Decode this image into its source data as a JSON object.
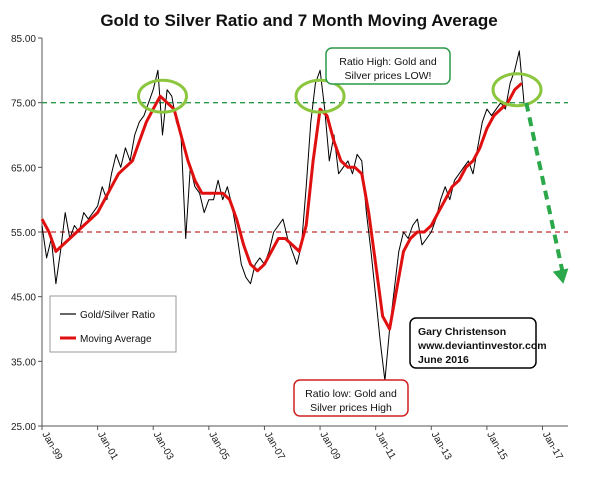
{
  "chart_data": {
    "type": "line",
    "title": "Gold to Silver Ratio and 7 Month Moving Average",
    "xlabel": "",
    "ylabel": "",
    "ylim": [
      25,
      85
    ],
    "y_ticks": [
      "85.00",
      "75.00",
      "65.00",
      "55.00",
      "45.00",
      "35.00",
      "25.00"
    ],
    "x_range": [
      "1999-01",
      "2017-12"
    ],
    "x_ticks": [
      {
        "label": "Jan-99",
        "date": "1999-01"
      },
      {
        "label": "Jan-01",
        "date": "2001-01"
      },
      {
        "label": "Jan-03",
        "date": "2003-01"
      },
      {
        "label": "Jan-05",
        "date": "2005-01"
      },
      {
        "label": "Jan-07",
        "date": "2007-01"
      },
      {
        "label": "Jan-09",
        "date": "2009-01"
      },
      {
        "label": "Jan-11",
        "date": "2011-01"
      },
      {
        "label": "Jan-13",
        "date": "2013-01"
      },
      {
        "label": "Jan-15",
        "date": "2015-01"
      },
      {
        "label": "Jan-17",
        "date": "2017-01"
      }
    ],
    "grid": false,
    "legend_position": "bottom-left",
    "series": [
      {
        "name": "Gold/Silver Ratio",
        "color": "#000000",
        "points": [
          [
            "1999-01",
            56
          ],
          [
            "1999-03",
            51
          ],
          [
            "1999-05",
            54
          ],
          [
            "1999-07",
            47
          ],
          [
            "1999-09",
            52
          ],
          [
            "1999-11",
            58
          ],
          [
            "2000-01",
            54
          ],
          [
            "2000-03",
            56
          ],
          [
            "2000-05",
            55
          ],
          [
            "2000-07",
            58
          ],
          [
            "2000-09",
            57
          ],
          [
            "2000-11",
            58
          ],
          [
            "2001-01",
            59
          ],
          [
            "2001-03",
            62
          ],
          [
            "2001-05",
            60
          ],
          [
            "2001-07",
            64
          ],
          [
            "2001-09",
            67
          ],
          [
            "2001-11",
            65
          ],
          [
            "2002-01",
            68
          ],
          [
            "2002-03",
            66
          ],
          [
            "2002-05",
            70
          ],
          [
            "2002-07",
            72
          ],
          [
            "2002-09",
            73
          ],
          [
            "2002-11",
            75
          ],
          [
            "2003-01",
            77
          ],
          [
            "2003-03",
            80
          ],
          [
            "2003-05",
            70
          ],
          [
            "2003-07",
            77
          ],
          [
            "2003-09",
            76
          ],
          [
            "2003-11",
            72
          ],
          [
            "2004-01",
            70
          ],
          [
            "2004-03",
            54
          ],
          [
            "2004-05",
            65
          ],
          [
            "2004-07",
            62
          ],
          [
            "2004-09",
            61
          ],
          [
            "2004-11",
            58
          ],
          [
            "2005-01",
            60
          ],
          [
            "2005-03",
            60
          ],
          [
            "2005-05",
            63
          ],
          [
            "2005-07",
            60
          ],
          [
            "2005-09",
            62
          ],
          [
            "2005-11",
            59
          ],
          [
            "2006-01",
            55
          ],
          [
            "2006-03",
            50
          ],
          [
            "2006-05",
            48
          ],
          [
            "2006-07",
            47
          ],
          [
            "2006-09",
            50
          ],
          [
            "2006-11",
            51
          ],
          [
            "2007-01",
            50
          ],
          [
            "2007-03",
            52
          ],
          [
            "2007-05",
            55
          ],
          [
            "2007-07",
            56
          ],
          [
            "2007-09",
            57
          ],
          [
            "2007-11",
            54
          ],
          [
            "2008-01",
            52
          ],
          [
            "2008-03",
            50
          ],
          [
            "2008-05",
            53
          ],
          [
            "2008-07",
            62
          ],
          [
            "2008-09",
            72
          ],
          [
            "2008-11",
            78
          ],
          [
            "2009-01",
            80
          ],
          [
            "2009-03",
            74
          ],
          [
            "2009-05",
            66
          ],
          [
            "2009-07",
            70
          ],
          [
            "2009-09",
            64
          ],
          [
            "2009-11",
            65
          ],
          [
            "2010-01",
            66
          ],
          [
            "2010-03",
            64
          ],
          [
            "2010-05",
            67
          ],
          [
            "2010-07",
            66
          ],
          [
            "2010-09",
            58
          ],
          [
            "2010-11",
            52
          ],
          [
            "2011-01",
            45
          ],
          [
            "2011-03",
            38
          ],
          [
            "2011-05",
            32
          ],
          [
            "2011-07",
            40
          ],
          [
            "2011-09",
            46
          ],
          [
            "2011-11",
            52
          ],
          [
            "2012-01",
            55
          ],
          [
            "2012-03",
            54
          ],
          [
            "2012-05",
            56
          ],
          [
            "2012-07",
            57
          ],
          [
            "2012-09",
            53
          ],
          [
            "2012-11",
            54
          ],
          [
            "2013-01",
            55
          ],
          [
            "2013-03",
            57
          ],
          [
            "2013-05",
            60
          ],
          [
            "2013-07",
            62
          ],
          [
            "2013-09",
            60
          ],
          [
            "2013-11",
            63
          ],
          [
            "2014-01",
            64
          ],
          [
            "2014-03",
            65
          ],
          [
            "2014-05",
            66
          ],
          [
            "2014-07",
            64
          ],
          [
            "2014-09",
            68
          ],
          [
            "2014-11",
            72
          ],
          [
            "2015-01",
            74
          ],
          [
            "2015-03",
            73
          ],
          [
            "2015-05",
            74
          ],
          [
            "2015-07",
            75
          ],
          [
            "2015-09",
            74
          ],
          [
            "2015-11",
            78
          ],
          [
            "2016-01",
            80
          ],
          [
            "2016-03",
            83
          ],
          [
            "2016-05",
            75
          ]
        ]
      },
      {
        "name": "Moving Average",
        "color": "#e01010",
        "points": [
          [
            "1999-01",
            57
          ],
          [
            "1999-04",
            55
          ],
          [
            "1999-07",
            52
          ],
          [
            "1999-10",
            53
          ],
          [
            "2000-01",
            54
          ],
          [
            "2000-04",
            55
          ],
          [
            "2000-07",
            56
          ],
          [
            "2000-10",
            57
          ],
          [
            "2001-01",
            58
          ],
          [
            "2001-04",
            60
          ],
          [
            "2001-07",
            62
          ],
          [
            "2001-10",
            64
          ],
          [
            "2002-01",
            65
          ],
          [
            "2002-04",
            66
          ],
          [
            "2002-07",
            69
          ],
          [
            "2002-10",
            72
          ],
          [
            "2003-01",
            74
          ],
          [
            "2003-04",
            76
          ],
          [
            "2003-07",
            75
          ],
          [
            "2003-10",
            74
          ],
          [
            "2004-01",
            70
          ],
          [
            "2004-04",
            66
          ],
          [
            "2004-07",
            63
          ],
          [
            "2004-10",
            61
          ],
          [
            "2005-01",
            61
          ],
          [
            "2005-04",
            61
          ],
          [
            "2005-07",
            61
          ],
          [
            "2005-10",
            60
          ],
          [
            "2006-01",
            57
          ],
          [
            "2006-04",
            53
          ],
          [
            "2006-07",
            50
          ],
          [
            "2006-10",
            49
          ],
          [
            "2007-01",
            50
          ],
          [
            "2007-04",
            52
          ],
          [
            "2007-07",
            54
          ],
          [
            "2007-10",
            54
          ],
          [
            "2008-01",
            53
          ],
          [
            "2008-04",
            52
          ],
          [
            "2008-07",
            56
          ],
          [
            "2008-10",
            66
          ],
          [
            "2009-01",
            74
          ],
          [
            "2009-04",
            73
          ],
          [
            "2009-07",
            69
          ],
          [
            "2009-10",
            66
          ],
          [
            "2010-01",
            65
          ],
          [
            "2010-04",
            65
          ],
          [
            "2010-07",
            64
          ],
          [
            "2010-10",
            58
          ],
          [
            "2011-01",
            50
          ],
          [
            "2011-04",
            42
          ],
          [
            "2011-07",
            40
          ],
          [
            "2011-10",
            46
          ],
          [
            "2012-01",
            52
          ],
          [
            "2012-04",
            54
          ],
          [
            "2012-07",
            55
          ],
          [
            "2012-10",
            55
          ],
          [
            "2013-01",
            56
          ],
          [
            "2013-04",
            58
          ],
          [
            "2013-07",
            60
          ],
          [
            "2013-10",
            62
          ],
          [
            "2014-01",
            63
          ],
          [
            "2014-04",
            65
          ],
          [
            "2014-07",
            66
          ],
          [
            "2014-10",
            68
          ],
          [
            "2015-01",
            71
          ],
          [
            "2015-04",
            73
          ],
          [
            "2015-07",
            74
          ],
          [
            "2015-10",
            75
          ],
          [
            "2016-01",
            77
          ],
          [
            "2016-04",
            78
          ]
        ]
      }
    ],
    "reference_lines": [
      {
        "y": 75,
        "color": "#2a9a4a",
        "style": "dashed"
      },
      {
        "y": 55,
        "color": "#c03030",
        "style": "dashed"
      }
    ],
    "highlight_circles": [
      {
        "x": "2003-05",
        "y": 76,
        "color": "#8cc63f"
      },
      {
        "x": "2009-01",
        "y": 76,
        "color": "#8cc63f"
      },
      {
        "x": "2016-02",
        "y": 77,
        "color": "#8cc63f"
      }
    ],
    "trend_arrow": {
      "from": [
        "2016-06",
        75
      ],
      "to": [
        "2017-10",
        47
      ],
      "color": "#2aa84a"
    },
    "annotations": [
      {
        "id": "ratio-high",
        "lines": [
          "Ratio High:  Gold and",
          "Silver prices LOW!"
        ],
        "border_color": "#2a9a4a"
      },
      {
        "id": "ratio-low",
        "lines": [
          "Ratio low:  Gold and",
          "Silver prices High"
        ],
        "border_color": "#d02020"
      },
      {
        "id": "credit",
        "lines": [
          "Gary Christenson",
          "www.deviantinvestor.com",
          "June 2016"
        ],
        "border_color": "#000000"
      }
    ]
  }
}
